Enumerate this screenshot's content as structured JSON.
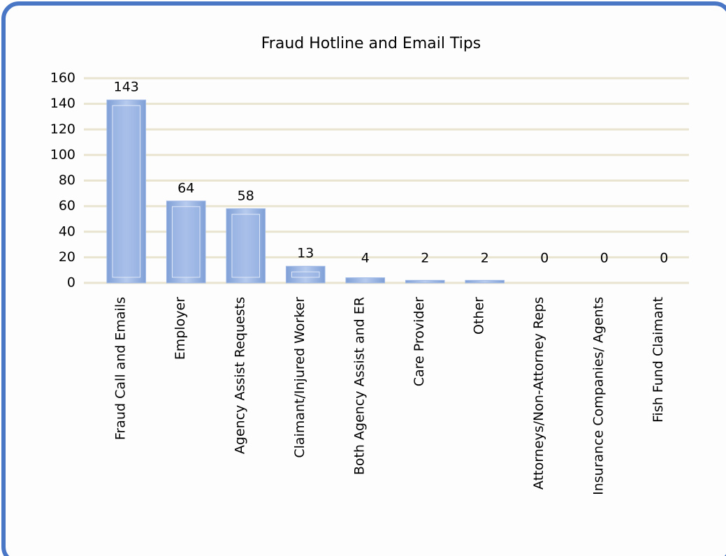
{
  "chart_data": {
    "type": "bar",
    "title": "Fraud Hotline and Email Tips",
    "categories": [
      "Fraud Call and Emails",
      "Employer",
      "Agency Assist Requests",
      "Claimant/Injured Worker",
      "Both Agency Assist and ER",
      "Care Provider",
      "Other",
      "Attorneys/Non-Attorney Reps",
      "Insurance Companies/ Agents",
      "Fish Fund Claimant"
    ],
    "values": [
      143,
      64,
      58,
      13,
      4,
      2,
      2,
      0,
      0,
      0
    ],
    "color": "#9fb8e6",
    "ylim": [
      0,
      160
    ],
    "yticks": [
      0,
      20,
      40,
      60,
      80,
      100,
      120,
      140,
      160
    ],
    "grid": true
  }
}
